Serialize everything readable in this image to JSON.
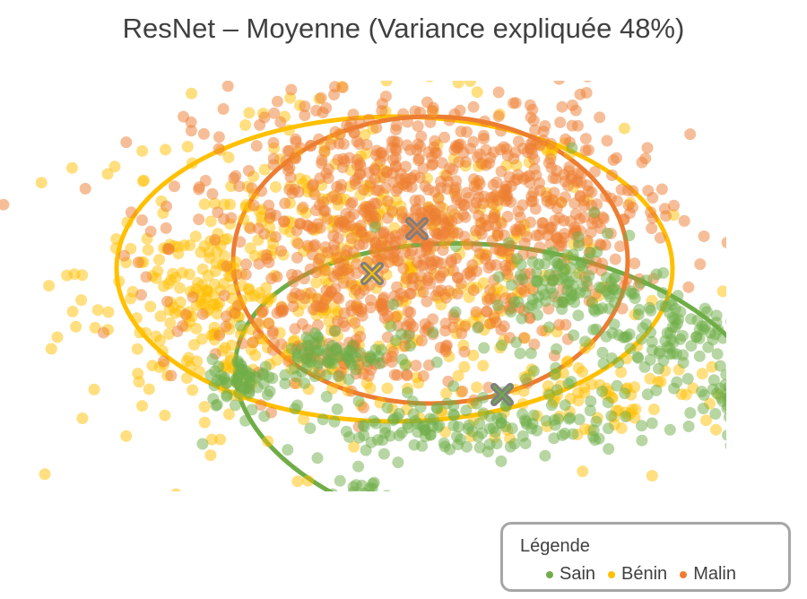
{
  "chart_data": {
    "type": "scatter",
    "title": "ResNet – Moyenne (Variance expliquée 48%)",
    "xlabel": "",
    "ylabel": "",
    "grid": false,
    "axes_visible": false,
    "legend": {
      "title": "Légende",
      "placement": "bottom-right",
      "entries": [
        "Sain",
        "Bénin",
        "Malin"
      ]
    },
    "series": [
      {
        "name": "Sain",
        "color": "#70ad47",
        "centroid": [
          3.9,
          0.6
        ],
        "ellipse": {
          "center": [
            3.9,
            0.6
          ],
          "rx": 6.0,
          "ry": 3.3,
          "angle_deg": 8
        },
        "clusters": [
          {
            "center": [
              -1.8,
              0.9
            ],
            "spread": [
              0.4,
              0.25
            ],
            "n": 60
          },
          {
            "center": [
              0.1,
              1.5
            ],
            "spread": [
              0.6,
              0.3
            ],
            "n": 70
          },
          {
            "center": [
              2.8,
              -0.1
            ],
            "spread": [
              2.0,
              0.3
            ],
            "n": 140
          },
          {
            "center": [
              5.3,
              3.1
            ],
            "spread": [
              0.6,
              0.4
            ],
            "n": 80
          },
          {
            "center": [
              7.6,
              2.0
            ],
            "spread": [
              0.8,
              0.5
            ],
            "n": 90
          },
          {
            "center": [
              9.1,
              0.5
            ],
            "spread": [
              0.5,
              0.35
            ],
            "n": 70
          },
          {
            "center": [
              0.8,
              -1.6
            ],
            "spread": [
              0.3,
              0.2
            ],
            "n": 20
          },
          {
            "center": [
              4.8,
              1.8
            ],
            "spread": [
              1.8,
              1.2
            ],
            "n": 80
          }
        ]
      },
      {
        "name": "Bénin",
        "color": "#ffc000",
        "centroid": [
          1.0,
          3.3
        ],
        "ellipse": {
          "center": [
            1.5,
            3.4
          ],
          "rx": 6.2,
          "ry": 3.4,
          "angle_deg": 0
        },
        "clusters": [
          {
            "center": [
              0.5,
              3.4
            ],
            "spread": [
              3.0,
              1.8
            ],
            "n": 500
          },
          {
            "center": [
              -2.8,
              2.4
            ],
            "spread": [
              1.0,
              1.0
            ],
            "n": 120
          },
          {
            "center": [
              6.0,
              0.6
            ],
            "spread": [
              1.6,
              0.6
            ],
            "n": 80
          }
        ]
      },
      {
        "name": "Malin",
        "color": "#ed7d31",
        "centroid": [
          2.0,
          4.3
        ],
        "ellipse": {
          "center": [
            2.3,
            3.6
          ],
          "rx": 4.4,
          "ry": 3.2,
          "angle_deg": 0
        },
        "clusters": [
          {
            "center": [
              1.8,
              4.6
            ],
            "spread": [
              2.4,
              1.5
            ],
            "n": 700
          },
          {
            "center": [
              0.6,
              2.4
            ],
            "spread": [
              1.6,
              0.9
            ],
            "n": 180
          },
          {
            "center": [
              4.6,
              4.9
            ],
            "spread": [
              1.5,
              1.0
            ],
            "n": 160
          }
        ]
      }
    ]
  }
}
